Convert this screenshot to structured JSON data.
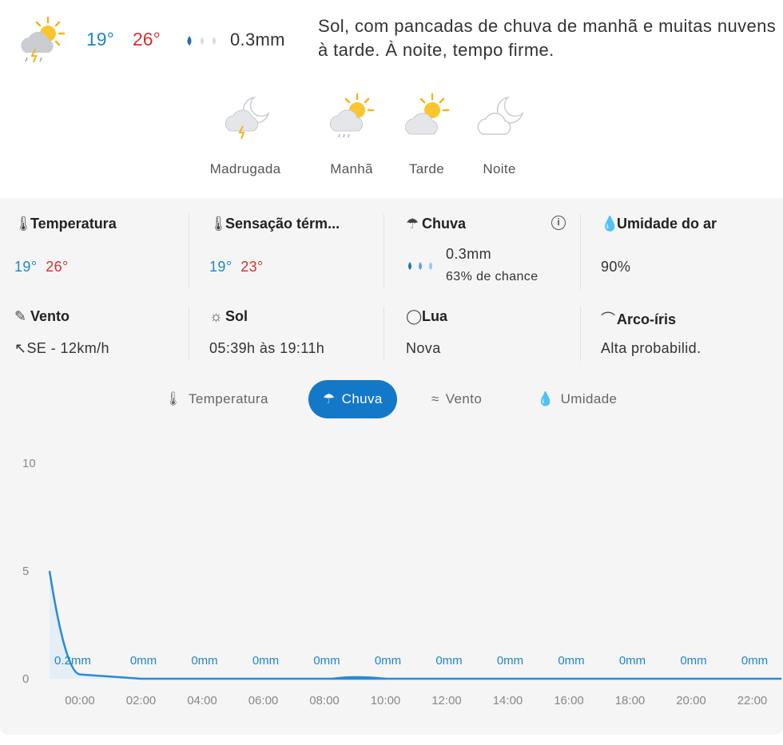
{
  "summary": {
    "icon": "sun-rain-thunder-icon",
    "temp_min": "19°",
    "temp_max": "26°",
    "rain": "0.3mm",
    "description": "Sol, com pancadas de chuva de manhã e muitas nuvens à tarde. À noite, tempo firme."
  },
  "periods": [
    {
      "label": "Madrugada",
      "icon": "moon-cloud-thunder-icon"
    },
    {
      "label": "Manhã",
      "icon": "sun-cloud-rain-icon"
    },
    {
      "label": "Tarde",
      "icon": "sun-cloud-icon"
    },
    {
      "label": "Noite",
      "icon": "moon-cloud-icon"
    }
  ],
  "details": {
    "temperatura": {
      "title": "Temperatura",
      "min": "19°",
      "max": "26°"
    },
    "sensacao": {
      "title": "Sensação térm...",
      "min": "19°",
      "max": "23°"
    },
    "chuva": {
      "title": "Chuva",
      "amount": "0.3mm",
      "chance": "63% de chance"
    },
    "umidade": {
      "title": "Umidade do ar",
      "value": "90%"
    },
    "vento": {
      "title": "Vento",
      "value": "SE - 12km/h"
    },
    "sol": {
      "title": "Sol",
      "value": "05:39h às 19:11h"
    },
    "lua": {
      "title": "Lua",
      "value": "Nova"
    },
    "arco": {
      "title": "Arco-íris",
      "value": "Alta probabilid."
    }
  },
  "tabs": [
    {
      "label": "Temperatura",
      "active": false
    },
    {
      "label": "Chuva",
      "active": true
    },
    {
      "label": "Vento",
      "active": false
    },
    {
      "label": "Umidade",
      "active": false
    }
  ],
  "colors": {
    "min_temp": "#1f86c9",
    "max_temp": "#d0332f",
    "accent": "#1478c8",
    "line": "#2a8ad4"
  },
  "chart_data": {
    "type": "area",
    "yticks": [
      "10",
      "5",
      "0"
    ],
    "ylim": [
      0,
      10
    ],
    "x": [
      "00:00",
      "02:00",
      "04:00",
      "06:00",
      "08:00",
      "10:00",
      "12:00",
      "14:00",
      "16:00",
      "18:00",
      "20:00",
      "22:00"
    ],
    "labels": [
      "0.2mm",
      "0mm",
      "0mm",
      "0mm",
      "0mm",
      "0mm",
      "0mm",
      "0mm",
      "0mm",
      "0mm",
      "0mm",
      "0mm"
    ],
    "values": [
      0.2,
      0,
      0,
      0,
      0,
      0,
      0,
      0,
      0,
      0,
      0,
      0
    ],
    "line_start_value": 5
  }
}
